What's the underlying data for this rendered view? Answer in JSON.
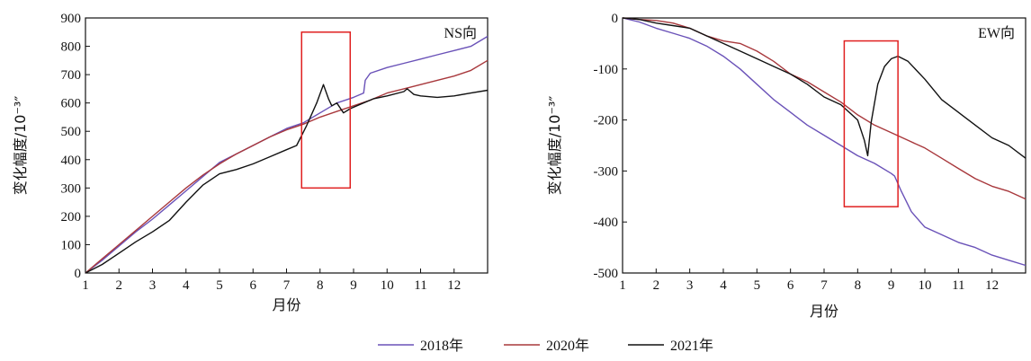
{
  "legend": [
    {
      "name": "2018年",
      "color": "#6a52b8"
    },
    {
      "name": "2020年",
      "color": "#a8383c"
    },
    {
      "name": "2021年",
      "color": "#111111"
    }
  ],
  "chart_data": [
    {
      "type": "line",
      "panel_label": "NS向",
      "xlabel": "月份",
      "ylabel": "变化幅度/10⁻³″",
      "xlim": [
        1,
        13
      ],
      "ylim": [
        0,
        900
      ],
      "xticks": [
        1,
        2,
        3,
        4,
        5,
        6,
        7,
        8,
        9,
        10,
        11,
        12
      ],
      "yticks": [
        0,
        100,
        200,
        300,
        400,
        500,
        600,
        700,
        800,
        900
      ],
      "highlight_box": {
        "x": [
          7.45,
          8.9
        ],
        "y": [
          300,
          850
        ]
      },
      "series": [
        {
          "name": "2018年",
          "x": [
            1,
            1.5,
            2,
            2.5,
            3,
            3.5,
            4,
            4.5,
            5,
            5.5,
            6,
            6.5,
            7,
            7.5,
            8,
            8.5,
            9,
            9.3,
            9.35,
            9.5,
            10,
            10.5,
            11,
            11.5,
            12,
            12.5,
            13
          ],
          "y": [
            0,
            45,
            95,
            145,
            190,
            240,
            290,
            340,
            390,
            420,
            450,
            480,
            510,
            530,
            565,
            600,
            620,
            635,
            680,
            705,
            725,
            740,
            755,
            770,
            785,
            800,
            835
          ]
        },
        {
          "name": "2020年",
          "x": [
            1,
            1.5,
            2,
            2.5,
            3,
            3.5,
            4,
            4.5,
            5,
            5.5,
            6,
            6.5,
            7,
            7.5,
            8,
            8.5,
            9,
            9.5,
            10,
            10.5,
            11,
            11.5,
            12,
            12.5,
            13
          ],
          "y": [
            0,
            50,
            100,
            150,
            200,
            250,
            300,
            345,
            385,
            420,
            450,
            480,
            505,
            525,
            550,
            570,
            590,
            610,
            635,
            650,
            665,
            680,
            695,
            715,
            750
          ]
        },
        {
          "name": "2021年",
          "x": [
            1,
            1.5,
            2,
            2.5,
            3,
            3.5,
            4,
            4.5,
            5,
            5.5,
            6,
            6.5,
            7,
            7.3,
            7.6,
            7.9,
            8.1,
            8.25,
            8.35,
            8.5,
            8.7,
            8.9,
            9.2,
            9.6,
            10,
            10.5,
            10.6,
            10.8,
            11,
            11.5,
            12,
            12.5,
            13
          ],
          "y": [
            0,
            30,
            70,
            110,
            145,
            185,
            250,
            310,
            350,
            365,
            385,
            410,
            435,
            450,
            520,
            600,
            665,
            615,
            590,
            600,
            565,
            580,
            595,
            615,
            625,
            640,
            650,
            630,
            625,
            620,
            625,
            635,
            645
          ]
        }
      ]
    },
    {
      "type": "line",
      "panel_label": "EW向",
      "xlabel": "月份",
      "ylabel": "变化幅度/10⁻³″",
      "xlim": [
        1,
        13
      ],
      "ylim": [
        -500,
        0
      ],
      "xticks": [
        1,
        2,
        3,
        4,
        5,
        6,
        7,
        8,
        9,
        10,
        11,
        12
      ],
      "yticks": [
        -500,
        -400,
        -300,
        -200,
        -100,
        0
      ],
      "highlight_box": {
        "x": [
          7.6,
          9.2
        ],
        "y": [
          -370,
          -45
        ]
      },
      "series": [
        {
          "name": "2018年",
          "x": [
            1,
            1.5,
            2,
            2.5,
            3,
            3.5,
            4,
            4.5,
            5,
            5.5,
            6,
            6.5,
            7,
            7.5,
            8,
            8.5,
            9,
            9.1,
            9.3,
            9.6,
            10,
            10.5,
            11,
            11.5,
            12,
            12.5,
            13
          ],
          "y": [
            0,
            -8,
            -20,
            -30,
            -40,
            -55,
            -75,
            -100,
            -130,
            -160,
            -185,
            -210,
            -230,
            -250,
            -270,
            -285,
            -305,
            -310,
            -340,
            -380,
            -410,
            -425,
            -440,
            -450,
            -465,
            -475,
            -485
          ]
        },
        {
          "name": "2020年",
          "x": [
            1,
            1.5,
            2,
            2.5,
            3,
            3.5,
            4,
            4.5,
            5,
            5.5,
            6,
            6.5,
            7,
            7.5,
            8,
            8.5,
            9,
            9.5,
            10,
            10.5,
            11,
            11.5,
            12,
            12.5,
            13
          ],
          "y": [
            0,
            -3,
            -5,
            -10,
            -20,
            -35,
            -45,
            -50,
            -65,
            -85,
            -110,
            -125,
            -145,
            -165,
            -190,
            -210,
            -225,
            -240,
            -255,
            -275,
            -295,
            -315,
            -330,
            -340,
            -355
          ]
        },
        {
          "name": "2021年",
          "x": [
            1,
            1.5,
            2,
            2.5,
            3,
            3.5,
            4,
            4.5,
            5,
            5.5,
            6,
            6.5,
            7,
            7.5,
            8,
            8.2,
            8.3,
            8.4,
            8.6,
            8.8,
            9,
            9.2,
            9.5,
            10,
            10.5,
            11,
            11.5,
            12,
            12.5,
            13
          ],
          "y": [
            0,
            -3,
            -10,
            -15,
            -20,
            -35,
            -50,
            -65,
            -80,
            -95,
            -110,
            -130,
            -155,
            -170,
            -200,
            -240,
            -270,
            -205,
            -130,
            -95,
            -80,
            -75,
            -85,
            -120,
            -160,
            -185,
            -210,
            -235,
            -250,
            -275
          ]
        }
      ]
    }
  ]
}
